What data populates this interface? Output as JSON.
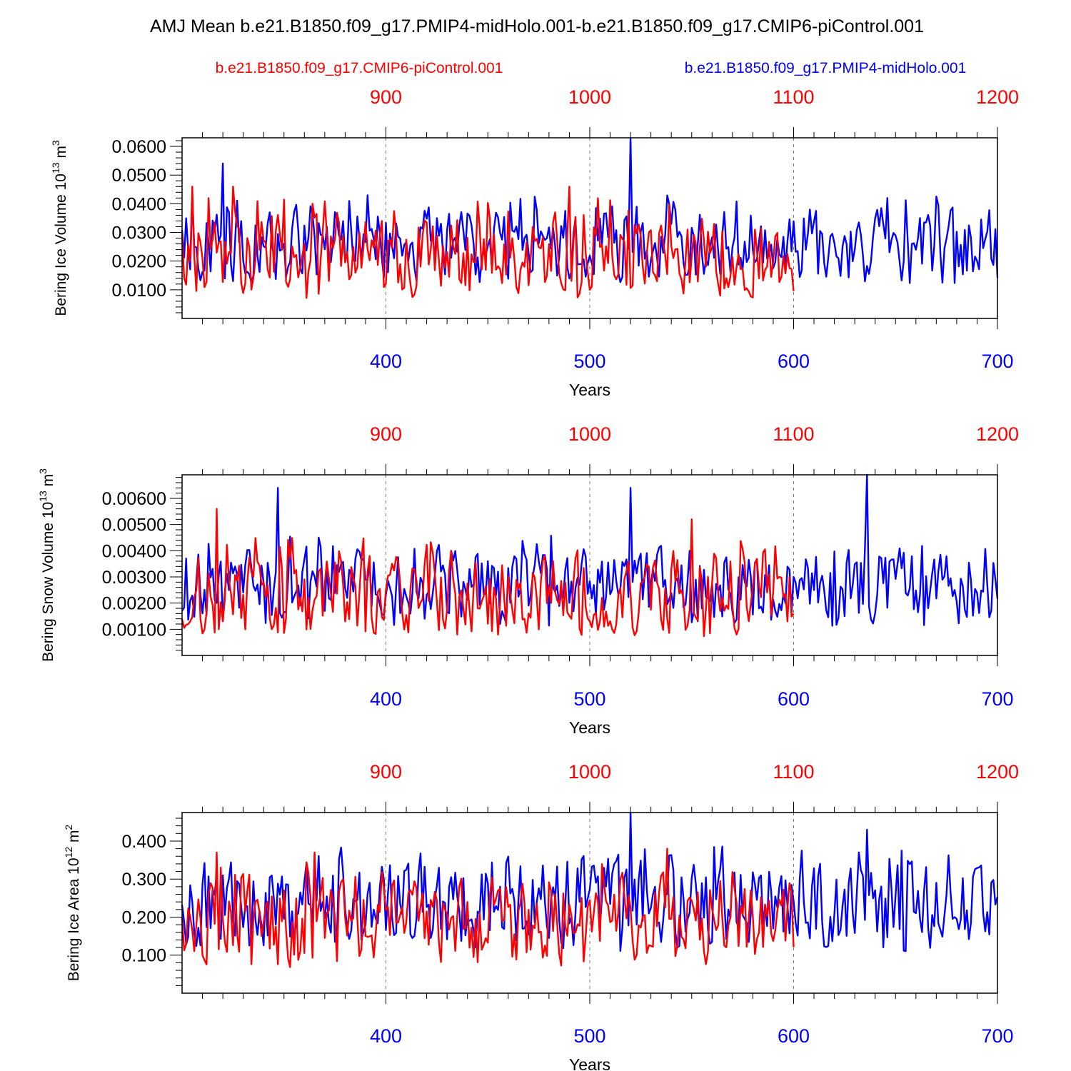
{
  "chart_data": {
    "type": "line",
    "title": "AMJ Mean b.e21.B1850.f09_g17.PMIP4-midHolo.001-b.e21.B1850.f09_g17.CMIP6-piControl.001",
    "legend": [
      {
        "name": "b.e21.B1850.f09_g17.CMIP6-piControl.001",
        "color": "#ff0000",
        "placement": "top-left"
      },
      {
        "name": "b.e21.B1850.f09_g17.PMIP4-midHolo.001",
        "color": "#0000ff",
        "placement": "top-right"
      }
    ],
    "colors": {
      "red": "#ff0000",
      "blue": "#0000ff",
      "axis": "#000000",
      "grid": "#777777"
    },
    "panels": [
      {
        "ylabel_main": "Bering Ice Volume 10",
        "ylabel_exp": "13",
        "ylabel_unit": "m",
        "ylabel_unit_exp": "3",
        "xlabel": "Years",
        "ylim": [
          0.0,
          0.063
        ],
        "yticks": [
          0.01,
          0.02,
          0.03,
          0.04,
          0.05,
          0.06
        ],
        "ytick_labels": [
          "0.0100",
          "0.0200",
          "0.0300",
          "0.0400",
          "0.0500",
          "0.0600"
        ],
        "bottom_axis": {
          "range": [
            300,
            700
          ],
          "ticks": [
            400,
            500,
            600,
            700
          ],
          "labels": [
            "400",
            "500",
            "600",
            "700"
          ]
        },
        "top_axis": {
          "range": [
            800,
            1200
          ],
          "ticks": [
            900,
            1000,
            1100,
            1200
          ],
          "labels": [
            "900",
            "1000",
            "1100",
            "1200"
          ]
        },
        "series": [
          {
            "name": "b.e21.B1850.f09_g17.PMIP4-midHolo.001",
            "color": "#0000ff",
            "x_start": 300,
            "peaks": {
              "20": 0.054,
              "220": 0.063
            },
            "mean": 0.026,
            "amp": 0.009
          },
          {
            "name": "b.e21.B1850.f09_g17.CMIP6-piControl.001",
            "color": "#ff0000",
            "x_start": 300,
            "x_end": 600,
            "peaks": {
              "5": 0.046,
              "25": 0.046,
              "190": 0.046
            },
            "mean": 0.023,
            "amp": 0.01
          }
        ]
      },
      {
        "ylabel_main": "Bering Snow Volume 10",
        "ylabel_exp": "13",
        "ylabel_unit": "m",
        "ylabel_unit_exp": "3",
        "xlabel": "Years",
        "ylim": [
          0.0,
          0.0069
        ],
        "yticks": [
          0.001,
          0.002,
          0.003,
          0.004,
          0.005,
          0.006
        ],
        "ytick_labels": [
          "0.00100",
          "0.00200",
          "0.00300",
          "0.00400",
          "0.00500",
          "0.00600"
        ],
        "bottom_axis": {
          "range": [
            300,
            700
          ],
          "ticks": [
            400,
            500,
            600,
            700
          ],
          "labels": [
            "400",
            "500",
            "600",
            "700"
          ]
        },
        "top_axis": {
          "range": [
            800,
            1200
          ],
          "ticks": [
            900,
            1000,
            1100,
            1200
          ],
          "labels": [
            "900",
            "1000",
            "1100",
            "1200"
          ]
        },
        "series": [
          {
            "name": "b.e21.B1850.f09_g17.PMIP4-midHolo.001",
            "color": "#0000ff",
            "x_start": 300,
            "peaks": {
              "47": 0.0064,
              "220": 0.0064,
              "336": 0.0069
            },
            "mean": 0.0027,
            "amp": 0.001
          },
          {
            "name": "b.e21.B1850.f09_g17.CMIP6-piControl.001",
            "color": "#ff0000",
            "x_start": 300,
            "x_end": 600,
            "peaks": {
              "17": 0.0056,
              "250": 0.0052
            },
            "mean": 0.0024,
            "amp": 0.0011
          }
        ]
      },
      {
        "ylabel_main": "Bering Ice Area 10",
        "ylabel_exp": "12",
        "ylabel_unit": "m",
        "ylabel_unit_exp": "2",
        "xlabel": "Years",
        "ylim": [
          0.0,
          0.475
        ],
        "yticks": [
          0.1,
          0.2,
          0.3,
          0.4
        ],
        "ytick_labels": [
          "0.100",
          "0.200",
          "0.300",
          "0.400"
        ],
        "bottom_axis": {
          "range": [
            300,
            700
          ],
          "ticks": [
            400,
            500,
            600,
            700
          ],
          "labels": [
            "400",
            "500",
            "600",
            "700"
          ]
        },
        "top_axis": {
          "range": [
            800,
            1200
          ],
          "ticks": [
            900,
            1000,
            1100,
            1200
          ],
          "labels": [
            "900",
            "1000",
            "1100",
            "1200"
          ]
        },
        "series": [
          {
            "name": "b.e21.B1850.f09_g17.PMIP4-midHolo.001",
            "color": "#0000ff",
            "x_start": 300,
            "peaks": {
              "220": 0.475,
              "336": 0.43
            },
            "mean": 0.235,
            "amp": 0.08
          },
          {
            "name": "b.e21.B1850.f09_g17.CMIP6-piControl.001",
            "color": "#ff0000",
            "x_start": 300,
            "x_end": 600,
            "peaks": {
              "17": 0.37,
              "65": 0.37,
              "238": 0.38
            },
            "mean": 0.195,
            "amp": 0.08
          }
        ]
      }
    ]
  }
}
